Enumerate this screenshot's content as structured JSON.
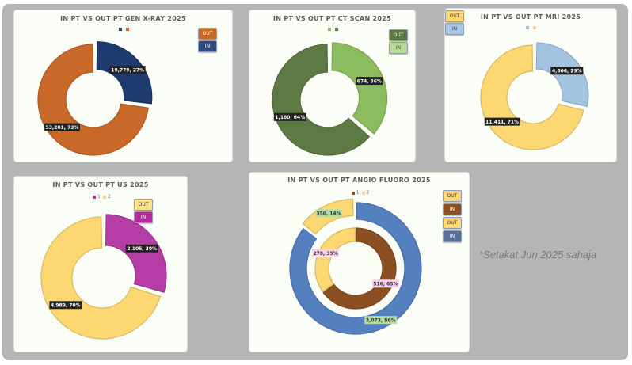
{
  "note": "*Setakat Jun 2025 sahaja",
  "chart_data": [
    {
      "type": "pie",
      "variant": "donut",
      "title": "IN PT VS OUT PT GEN X-RAY 2025",
      "legend": [
        "",
        ""
      ],
      "series": [
        {
          "categories": [
            "IN",
            "OUT"
          ],
          "values": [
            19779,
            53201
          ],
          "labels": [
            "19,779, 27%",
            "53,201, 73%"
          ],
          "colors": [
            "#1f3a6e",
            "#c8692a"
          ]
        }
      ],
      "chips": [
        {
          "label": "OUT",
          "color": "#c8692a",
          "text": "#ffffff"
        },
        {
          "label": "IN",
          "color": "#2f4b7c",
          "text": "#ffffff"
        }
      ],
      "legend_colors": [
        "#1f3a6e",
        "#c8692a"
      ],
      "label_style": "dark"
    },
    {
      "type": "pie",
      "variant": "donut",
      "title": "IN PT VS OUT PT CT SCAN 2025",
      "legend": [
        "",
        ""
      ],
      "series": [
        {
          "categories": [
            "IN",
            "OUT"
          ],
          "values": [
            674,
            1180
          ],
          "labels": [
            "674, 36%",
            "1,180, 64%"
          ],
          "colors": [
            "#8bbd5e",
            "#5e7a44"
          ]
        }
      ],
      "chips": [
        {
          "label": "OUT",
          "color": "#5e7a44",
          "text": "#ffffff"
        },
        {
          "label": "IN",
          "color": "#b7dc98",
          "text": "#333333"
        }
      ],
      "legend_colors": [
        "#8bbd5e",
        "#5e7a44"
      ],
      "label_style": "dark"
    },
    {
      "type": "pie",
      "variant": "donut",
      "title": "IN PT VS OUT PT MRI 2025",
      "legend": [
        "",
        ""
      ],
      "series": [
        {
          "categories": [
            "IN",
            "OUT"
          ],
          "values": [
            4606,
            11411
          ],
          "labels": [
            "4,606, 29%",
            "11,411, 71%"
          ],
          "colors": [
            "#a3c4e0",
            "#fdd872"
          ]
        }
      ],
      "chips": [
        {
          "label": "OUT",
          "color": "#fdd872",
          "text": "#333333"
        },
        {
          "label": "IN",
          "color": "#a8c8e6",
          "text": "#333333"
        }
      ],
      "legend_colors": [
        "#a3c4e0",
        "#fdd872"
      ],
      "label_style": "dark"
    },
    {
      "type": "pie",
      "variant": "donut",
      "title": "IN PT VS OUT PT US 2025",
      "legend": [
        "1",
        "2"
      ],
      "series": [
        {
          "categories": [
            "IN",
            "OUT"
          ],
          "values": [
            2105,
            4989
          ],
          "labels": [
            "2,105, 30%",
            "4,989, 70%"
          ],
          "colors": [
            "#b53da6",
            "#fdd872"
          ]
        }
      ],
      "chips": [
        {
          "label": "OUT",
          "color": "#fde08a",
          "text": "#333333"
        },
        {
          "label": "IN",
          "color": "#b52aa3",
          "text": "#ffffff"
        }
      ],
      "legend_colors": [
        "#b53da6",
        "#fdd872"
      ],
      "label_style": "dark"
    },
    {
      "type": "pie",
      "variant": "double-donut",
      "title": "IN PT VS OUT PT ANGIO FLUORO 2025",
      "legend": [
        "1",
        "2"
      ],
      "series": [
        {
          "ring": "outer",
          "categories": [
            "IN",
            "OUT"
          ],
          "values": [
            2073,
            350
          ],
          "labels": [
            "2,073, 86%",
            "350, 14%"
          ],
          "colors": [
            "#5580c0",
            "#fdd872"
          ],
          "label_bg": "#b4dca0"
        },
        {
          "ring": "inner",
          "categories": [
            "IN",
            "OUT"
          ],
          "values": [
            516,
            278
          ],
          "labels": [
            "516, 65%",
            "278, 35%"
          ],
          "colors": [
            "#8b4f22",
            "#fdd872"
          ],
          "label_bg": "#f8d0f0"
        }
      ],
      "chips": [
        {
          "label": "OUT",
          "color": "#fdd872",
          "text": "#333333"
        },
        {
          "label": "IN",
          "color": "#8b4f22",
          "text": "#ffffff"
        },
        {
          "label": "OUT",
          "color": "#fdd872",
          "text": "#333333"
        },
        {
          "label": "IN",
          "color": "#5a6e9a",
          "text": "#ffffff"
        }
      ],
      "legend_colors": [
        "#8b4f22",
        "#fdd872"
      ],
      "label_style": "light"
    }
  ]
}
